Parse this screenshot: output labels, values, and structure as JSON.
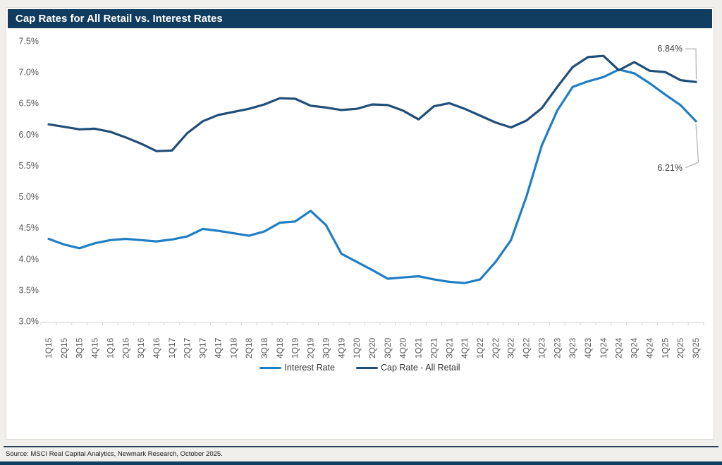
{
  "title": "Cap Rates for All Retail vs. Interest Rates",
  "source": "Source: MSCI Real Capital Analytics, Newmark Research, October 2025.",
  "colors": {
    "title_bar": "#103C5F",
    "interest_line": "#1F7EC4",
    "cap_line": "#1F4E79",
    "axis_text": "#595959",
    "leader_line": "#b3b0ab",
    "bottom_bar": "#0F3E5F"
  },
  "chart_data": {
    "type": "line",
    "title": "Cap Rates for All Retail vs. Interest Rates",
    "xlabel": "",
    "ylabel": "",
    "ylim": [
      3.0,
      7.5
    ],
    "ytick_step": 0.5,
    "yticks": [
      "7.5%",
      "7.0%",
      "6.5%",
      "6.0%",
      "5.5%",
      "5.0%",
      "4.5%",
      "4.0%",
      "3.5%",
      "3.0%"
    ],
    "grid": false,
    "legend_position": "bottom",
    "categories": [
      "1Q15",
      "2Q15",
      "3Q15",
      "4Q15",
      "1Q16",
      "2Q16",
      "3Q16",
      "4Q16",
      "1Q17",
      "2Q17",
      "3Q17",
      "4Q17",
      "1Q18",
      "2Q18",
      "3Q18",
      "4Q18",
      "1Q19",
      "2Q19",
      "3Q19",
      "4Q19",
      "1Q20",
      "2Q20",
      "3Q20",
      "4Q20",
      "1Q21",
      "2Q21",
      "3Q21",
      "4Q21",
      "1Q22",
      "2Q22",
      "3Q22",
      "4Q22",
      "1Q23",
      "2Q23",
      "3Q23",
      "4Q23",
      "1Q24",
      "2Q24",
      "3Q24",
      "4Q24",
      "1Q25",
      "2Q25",
      "3Q25"
    ],
    "series": [
      {
        "name": "Interest Rate",
        "color": "#1F7EC4",
        "values": [
          4.32,
          4.23,
          4.17,
          4.25,
          4.3,
          4.32,
          4.3,
          4.28,
          4.31,
          4.36,
          4.48,
          4.45,
          4.41,
          4.37,
          4.44,
          4.58,
          4.6,
          4.77,
          4.54,
          4.08,
          3.95,
          3.82,
          3.68,
          3.7,
          3.72,
          3.67,
          3.63,
          3.61,
          3.67,
          3.95,
          4.3,
          5.0,
          5.82,
          6.38,
          6.76,
          6.85,
          6.92,
          7.04,
          6.98,
          6.82,
          6.64,
          6.47,
          6.21
        ]
      },
      {
        "name": "Cap Rate - All Retail",
        "color": "#1F4E79",
        "values": [
          6.16,
          6.12,
          6.08,
          6.09,
          6.04,
          5.95,
          5.85,
          5.73,
          5.74,
          6.02,
          6.21,
          6.31,
          6.36,
          6.41,
          6.48,
          6.58,
          6.57,
          6.46,
          6.43,
          6.39,
          6.41,
          6.48,
          6.47,
          6.38,
          6.24,
          6.45,
          6.5,
          6.41,
          6.3,
          6.19,
          6.11,
          6.22,
          6.42,
          6.76,
          7.08,
          7.24,
          7.26,
          7.03,
          7.16,
          7.02,
          7.0,
          6.87,
          6.84
        ]
      }
    ],
    "annotations": [
      {
        "text": "6.84%",
        "series": "Cap Rate - All Retail",
        "position": "end"
      },
      {
        "text": "6.21%",
        "series": "Interest Rate",
        "position": "end"
      }
    ]
  }
}
